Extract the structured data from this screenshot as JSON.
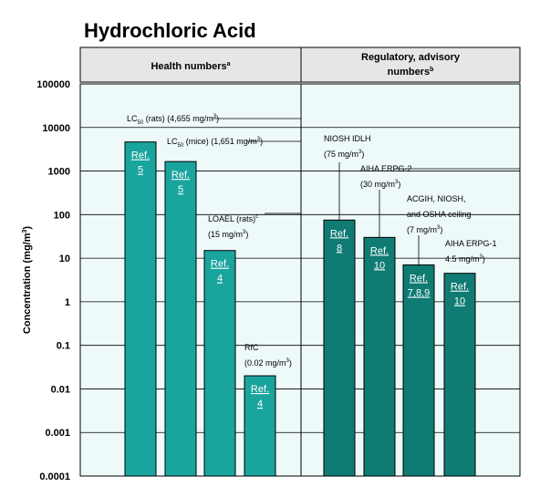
{
  "title": "Hydrochloric Acid",
  "headers": {
    "left": {
      "text": "Health numbers",
      "sup": "a"
    },
    "right_line1": "Regulatory, advisory",
    "right_line2": {
      "text": "numbers",
      "sup": "b"
    }
  },
  "colors": {
    "panel_bg": "#eefafa",
    "header_bg": "#e6e6e6",
    "health_bar": "#1aa49e",
    "regulatory_bar": "#0f7b73",
    "bar_stroke": "#000000"
  },
  "chart_data": {
    "type": "bar",
    "yscale": "log",
    "ylim": [
      0.0001,
      100000
    ],
    "yticks": [
      "100000",
      "10000",
      "1000",
      "100",
      "10",
      "1",
      "0.1",
      "0.01",
      "0.001",
      "0.0001"
    ],
    "ylabel": {
      "text": "Concentration (mg/m",
      "sup": "3",
      "tail": ")"
    },
    "grid": true,
    "panels": [
      {
        "name": "health",
        "bars": [
          {
            "value": 4655,
            "ref": [
              "Ref.",
              "5"
            ],
            "label": [
              [
                {
                  "t": "LC"
                },
                {
                  "t": "50",
                  "sub": true
                },
                {
                  "t": " (rats) (4,655 mg/m"
                },
                {
                  "t": "3",
                  "sup": true
                },
                {
                  "t": ")"
                }
              ]
            ]
          },
          {
            "value": 1651,
            "ref": [
              "Ref.",
              "5"
            ],
            "label": [
              [
                {
                  "t": "LC"
                },
                {
                  "t": "50",
                  "sub": true
                },
                {
                  "t": " (mice) (1,651 mg/m"
                },
                {
                  "t": "3",
                  "sup": true
                },
                {
                  "t": ")"
                }
              ]
            ]
          },
          {
            "value": 15,
            "ref": [
              "Ref.",
              "4"
            ],
            "label": [
              [
                {
                  "t": "LOAEL (rats)"
                },
                {
                  "t": "c",
                  "sup": true
                }
              ],
              [
                {
                  "t": "(15 mg/m"
                },
                {
                  "t": "3",
                  "sup": true
                },
                {
                  "t": ")"
                }
              ]
            ]
          },
          {
            "value": 0.02,
            "ref": [
              "Ref.",
              "4"
            ],
            "label": [
              [
                {
                  "t": "RfC"
                }
              ],
              [
                {
                  "t": "(0.02 mg/m"
                },
                {
                  "t": "3",
                  "sup": true
                },
                {
                  "t": ")"
                }
              ]
            ]
          }
        ]
      },
      {
        "name": "regulatory",
        "bars": [
          {
            "value": 75,
            "ref": [
              "Ref.",
              "8"
            ],
            "label": [
              [
                {
                  "t": "NIOSH IDLH"
                }
              ],
              [
                {
                  "t": "(75 mg/m"
                },
                {
                  "t": "3",
                  "sup": true
                },
                {
                  "t": ")"
                }
              ]
            ]
          },
          {
            "value": 30,
            "ref": [
              "Ref.",
              "10"
            ],
            "label": [
              [
                {
                  "t": "AIHA ERPG-2"
                }
              ],
              [
                {
                  "t": "(30 mg/m"
                },
                {
                  "t": "3",
                  "sup": true
                },
                {
                  "t": ")"
                }
              ]
            ]
          },
          {
            "value": 7,
            "ref": [
              "Ref.",
              "7,8,9"
            ],
            "label": [
              [
                {
                  "t": "ACGIH, NIOSH,"
                }
              ],
              [
                {
                  "t": "and OSHA ceiling"
                }
              ],
              [
                {
                  "t": "(7 mg/m"
                },
                {
                  "t": "3",
                  "sup": true
                },
                {
                  "t": ")"
                }
              ]
            ]
          },
          {
            "value": 4.5,
            "ref": [
              "Ref.",
              "10"
            ],
            "label": [
              [
                {
                  "t": "AIHA ERPG-1"
                }
              ],
              [
                {
                  "t": "4.5 mg/m"
                },
                {
                  "t": "3",
                  "sup": true
                },
                {
                  "t": ")"
                }
              ]
            ]
          }
        ]
      }
    ]
  }
}
